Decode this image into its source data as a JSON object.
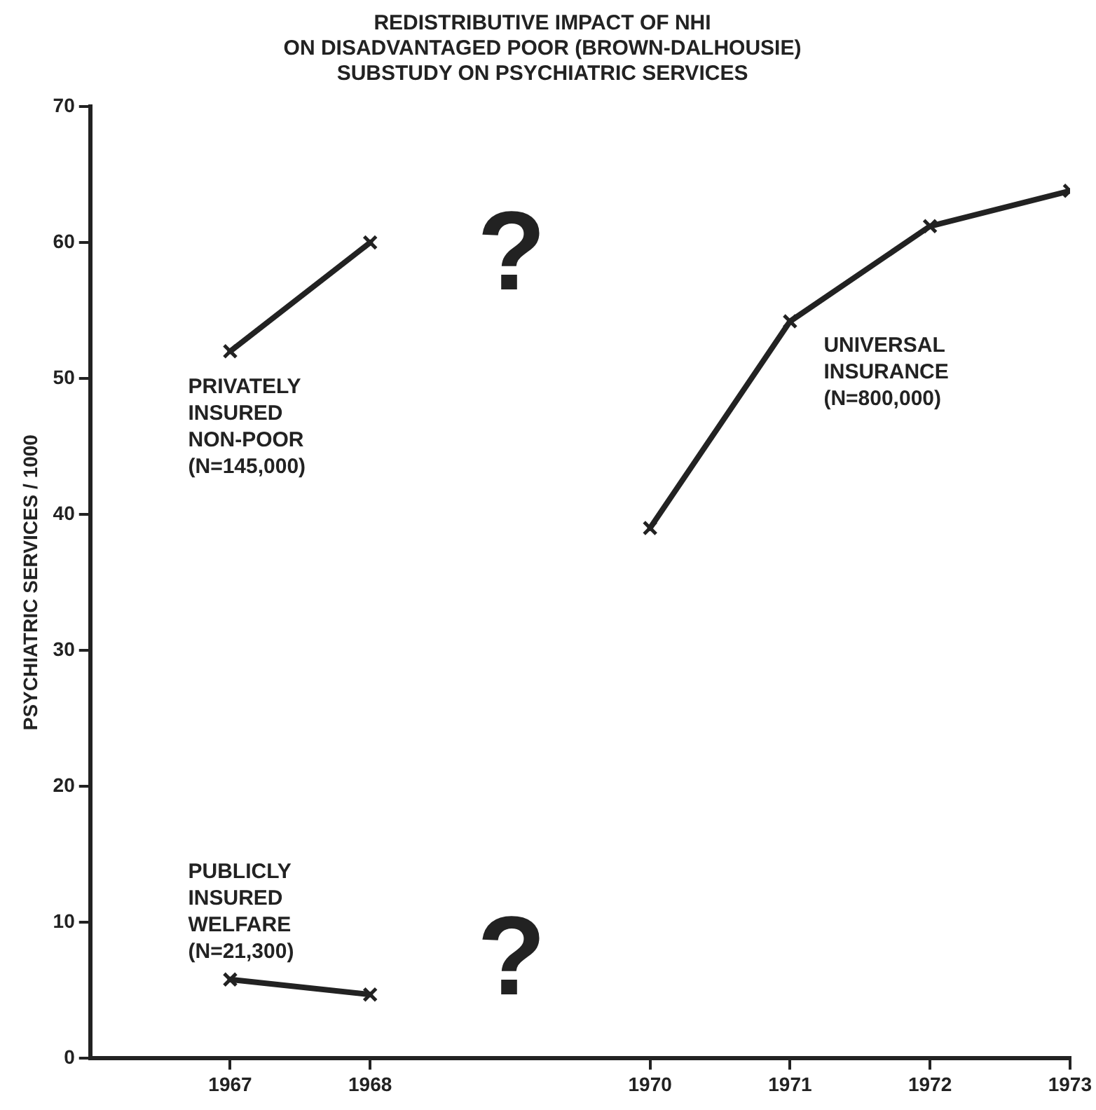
{
  "chart_data": {
    "type": "line",
    "title": [
      "REDISTRIBUTIVE IMPACT OF NHI",
      "ON DISADVANTAGED POOR (BROWN-DALHOUSIE)",
      "SUBSTUDY ON PSYCHIATRIC SERVICES"
    ],
    "ylabel": "PSYCHIATRIC SERVICES / 1000",
    "xlim": [
      1966,
      1973
    ],
    "xticks": [
      1967,
      1968,
      1970,
      1971,
      1972,
      1973
    ],
    "ylim": [
      0,
      70
    ],
    "yticks": [
      0,
      10,
      20,
      30,
      40,
      50,
      60,
      70
    ],
    "series": [
      {
        "name": "PRIVATELY\nINSURED\nNON-POOR\n(N=145,000)",
        "color": "#222222",
        "x": [
          1967,
          1968
        ],
        "values": [
          52,
          60
        ]
      },
      {
        "name": "UNIVERSAL\nINSURANCE\n(N=800,000)",
        "color": "#222222",
        "x": [
          1970,
          1971,
          1972,
          1973
        ],
        "values": [
          39,
          54.2,
          61.2,
          63.8
        ]
      },
      {
        "name": "PUBLICLY\nINSURED\nWELFARE\n(N=21,300)",
        "color": "#222222",
        "x": [
          1967,
          1968
        ],
        "values": [
          5.8,
          4.7
        ]
      }
    ],
    "annotations": [
      "?",
      "?"
    ],
    "marker": "cross",
    "line_style": "solid",
    "grid": false,
    "legend": false
  }
}
